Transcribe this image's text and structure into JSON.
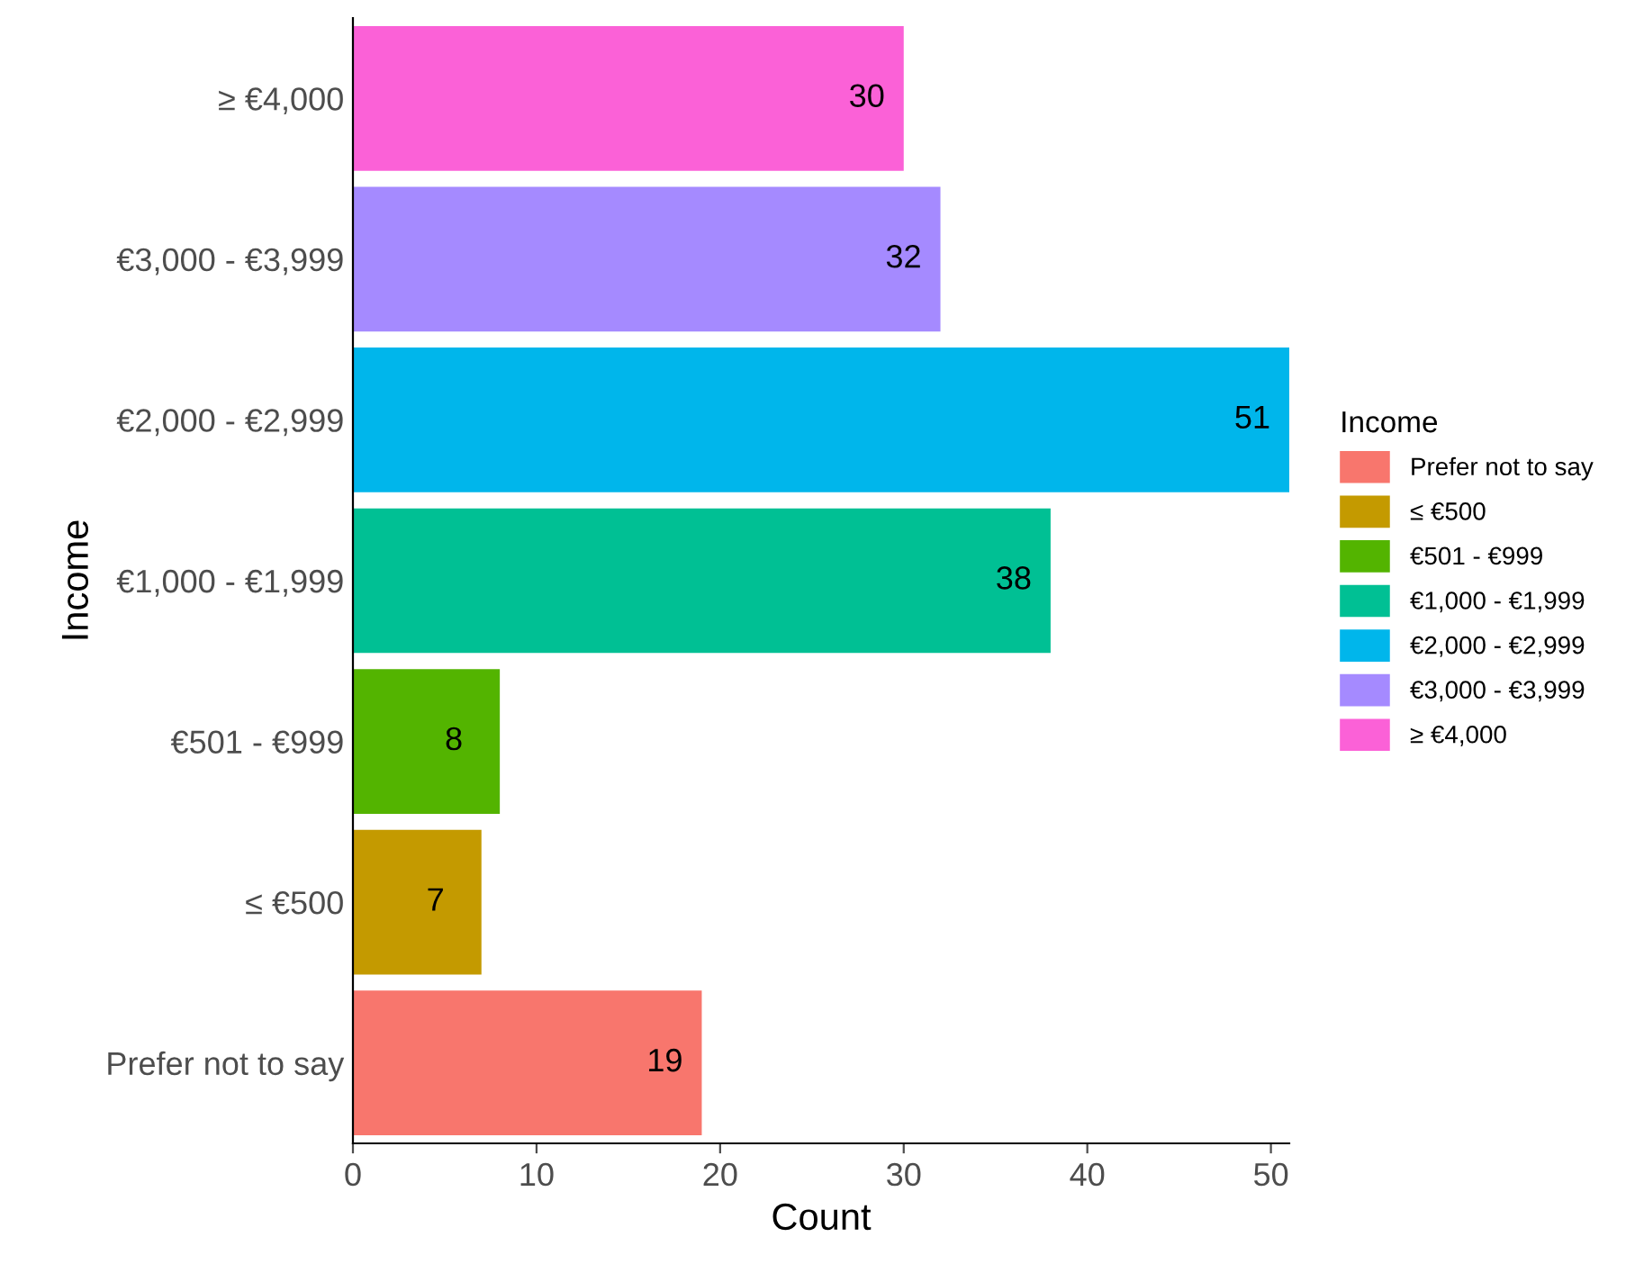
{
  "chart_data": {
    "type": "bar",
    "orientation": "horizontal",
    "xlabel": "Count",
    "ylabel": "Income",
    "legend_title": "Income",
    "categories": [
      "≥ €4,000",
      "€3,000 - €3,999",
      "€2,000 - €2,999",
      "€1,000 - €1,999",
      "€501 - €999",
      "≤ €500",
      "Prefer not to say"
    ],
    "series": [
      {
        "name": "Prefer not to say",
        "color": "#f8766d",
        "values": [
          null,
          null,
          null,
          null,
          null,
          null,
          19
        ]
      },
      {
        "name": "≤ €500",
        "color": "#c49a00",
        "values": [
          null,
          null,
          null,
          null,
          null,
          7,
          null
        ]
      },
      {
        "name": "€501 - €999",
        "color": "#53b400",
        "values": [
          null,
          null,
          null,
          null,
          8,
          null,
          null
        ]
      },
      {
        "name": "€1,000 - €1,999",
        "color": "#00c094",
        "values": [
          null,
          null,
          null,
          38,
          null,
          null,
          null
        ]
      },
      {
        "name": "€2,000 - €2,999",
        "color": "#00b6eb",
        "values": [
          null,
          null,
          51,
          null,
          null,
          null,
          null
        ]
      },
      {
        "name": "€3,000 - €3,999",
        "color": "#a58aff",
        "values": [
          null,
          32,
          null,
          null,
          null,
          null,
          null
        ]
      },
      {
        "name": "≥ €4,000",
        "color": "#fb61d7",
        "values": [
          30,
          null,
          null,
          null,
          null,
          null,
          null
        ]
      }
    ],
    "xlim": [
      0,
      51
    ],
    "xticks": [
      0,
      10,
      20,
      30,
      40,
      50
    ],
    "data_labels": true,
    "grid": false,
    "legend": "right"
  }
}
